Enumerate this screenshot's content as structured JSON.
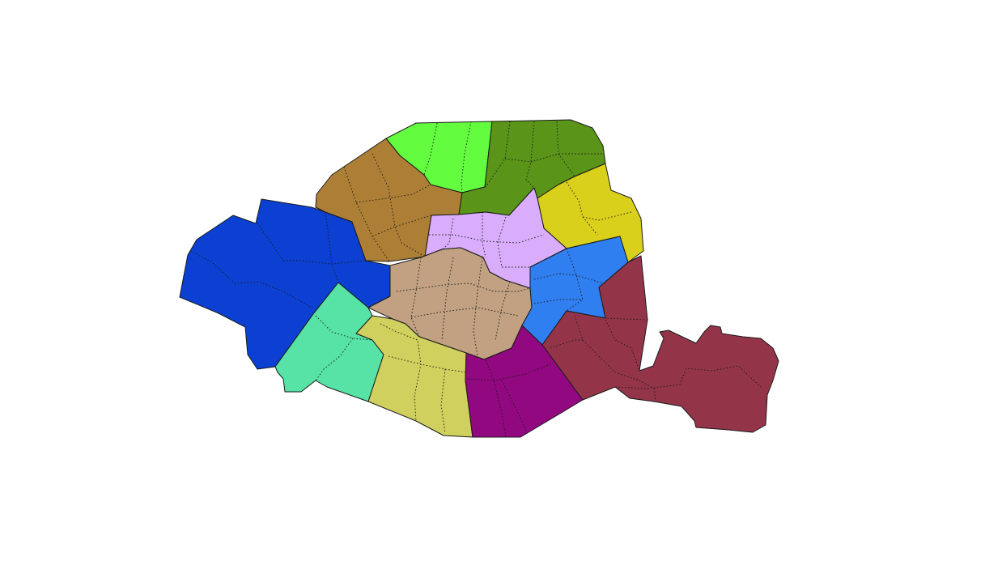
{
  "map": {
    "regions": [
      {
        "id": "west",
        "color": "#0b40d2"
      },
      {
        "id": "northwest",
        "color": "#ad7f36"
      },
      {
        "id": "north",
        "color": "#63fc3f"
      },
      {
        "id": "northnortheast",
        "color": "#5a9419"
      },
      {
        "id": "northeast",
        "color": "#d9d01c"
      },
      {
        "id": "center-north",
        "color": "#d9adfb"
      },
      {
        "id": "center",
        "color": "#c1a181"
      },
      {
        "id": "east-center",
        "color": "#307ff0"
      },
      {
        "id": "east",
        "color": "#943449"
      },
      {
        "id": "southwest",
        "color": "#57e3a6"
      },
      {
        "id": "south",
        "color": "#d0d05e"
      },
      {
        "id": "southeast",
        "color": "#920880"
      }
    ],
    "subdivision_style": "dotted",
    "outline_color": "#1a1a1a"
  }
}
